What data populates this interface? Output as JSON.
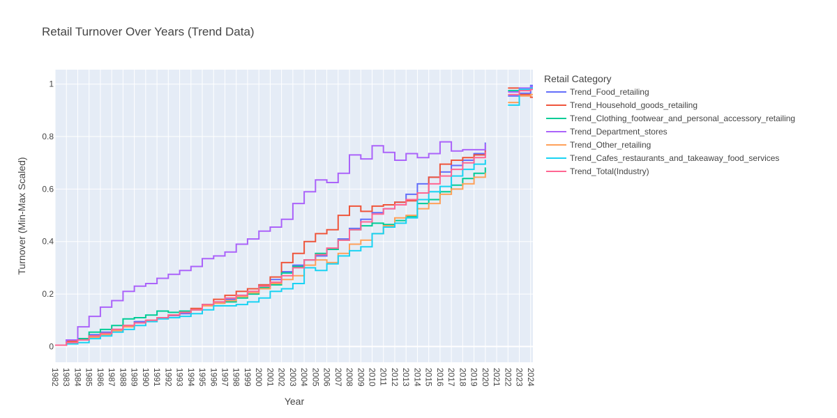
{
  "chart_data": {
    "type": "line",
    "title": "Retail Turnover Over Years (Trend Data)",
    "xlabel": "Year",
    "ylabel": "Turnover (Min-Max Scaled)",
    "xlim": [
      1982.0,
      2024.2
    ],
    "ylim": [
      -0.06,
      1.055
    ],
    "yticks": [
      0,
      0.2,
      0.4,
      0.6,
      0.8,
      1
    ],
    "ytick_labels": [
      "0",
      "0.2",
      "0.4",
      "0.6",
      "0.8",
      "1"
    ],
    "xticks": [
      1982,
      1983,
      1984,
      1985,
      1986,
      1987,
      1988,
      1989,
      1990,
      1991,
      1992,
      1993,
      1994,
      1995,
      1996,
      1997,
      1998,
      1999,
      2000,
      2001,
      2002,
      2003,
      2004,
      2005,
      2006,
      2007,
      2008,
      2009,
      2010,
      2011,
      2012,
      2013,
      2014,
      2015,
      2016,
      2017,
      2018,
      2019,
      2020,
      2021,
      2022,
      2023,
      2024
    ],
    "xtick_labels": [
      "1982",
      "1983",
      "1984",
      "1985",
      "1986",
      "1987",
      "1988",
      "1989",
      "1990",
      "1991",
      "1992",
      "1993",
      "1994",
      "1995",
      "1996",
      "1997",
      "1998",
      "1999",
      "2000",
      "2001",
      "2002",
      "2003",
      "2004",
      "2005",
      "2006",
      "2007",
      "2008",
      "2009",
      "2010",
      "2011",
      "2012",
      "2013",
      "2014",
      "2015",
      "2016",
      "2017",
      "2018",
      "2019",
      "2020",
      "2021",
      "2022",
      "2023",
      "2024"
    ],
    "grid": true,
    "plot_background": "#E5ECF6",
    "legend": {
      "title": "Retail Category",
      "placement": "right"
    },
    "years_main": [
      1982,
      1983,
      1984,
      1985,
      1986,
      1987,
      1988,
      1989,
      1990,
      1991,
      1992,
      1993,
      1994,
      1995,
      1996,
      1997,
      1998,
      1999,
      2000,
      2001,
      2002,
      2003,
      2004,
      2005,
      2006,
      2007,
      2008,
      2009,
      2010,
      2011,
      2012,
      2013,
      2014,
      2015,
      2016,
      2017,
      2018,
      2019,
      2020
    ],
    "years_recent": [
      2022,
      2023,
      2024
    ],
    "series": [
      {
        "name": "Trend_Food_retailing",
        "color": "#636EFA",
        "main": [
          0.005,
          0.025,
          0.03,
          0.045,
          0.055,
          0.065,
          0.08,
          0.095,
          0.1,
          0.11,
          0.118,
          0.125,
          0.14,
          0.16,
          0.17,
          0.18,
          0.195,
          0.22,
          0.235,
          0.255,
          0.285,
          0.31,
          0.33,
          0.345,
          0.37,
          0.41,
          0.45,
          0.485,
          0.51,
          0.525,
          0.55,
          0.58,
          0.62,
          0.645,
          0.665,
          0.69,
          0.71,
          0.735,
          0.775
        ],
        "recent": [
          0.955,
          0.965,
          0.995
        ]
      },
      {
        "name": "Trend_Household_goods_retailing",
        "color": "#EF553B",
        "main": [
          0.005,
          0.02,
          0.03,
          0.04,
          0.05,
          0.065,
          0.08,
          0.09,
          0.1,
          0.11,
          0.12,
          0.13,
          0.145,
          0.16,
          0.18,
          0.195,
          0.21,
          0.22,
          0.235,
          0.265,
          0.32,
          0.355,
          0.4,
          0.43,
          0.445,
          0.5,
          0.535,
          0.515,
          0.535,
          0.54,
          0.55,
          0.555,
          0.585,
          0.645,
          0.695,
          0.71,
          0.72,
          0.73,
          0.745
        ],
        "recent": [
          0.985,
          0.96,
          0.95
        ]
      },
      {
        "name": "Trend_Clothing_footwear_and_personal_accessory_retailing",
        "color": "#00CC96",
        "main": [
          0.005,
          0.015,
          0.03,
          0.055,
          0.065,
          0.08,
          0.105,
          0.11,
          0.12,
          0.135,
          0.13,
          0.135,
          0.14,
          0.16,
          0.165,
          0.17,
          0.185,
          0.2,
          0.225,
          0.235,
          0.28,
          0.305,
          0.33,
          0.355,
          0.37,
          0.405,
          0.445,
          0.46,
          0.47,
          0.465,
          0.48,
          0.495,
          0.545,
          0.56,
          0.59,
          0.615,
          0.64,
          0.66,
          0.68
        ],
        "recent": [
          0.975,
          0.98,
          0.985
        ]
      },
      {
        "name": "Trend_Department_stores",
        "color": "#AB63FA",
        "main": [
          0.005,
          0.025,
          0.075,
          0.115,
          0.15,
          0.175,
          0.21,
          0.23,
          0.24,
          0.26,
          0.275,
          0.29,
          0.305,
          0.335,
          0.345,
          0.36,
          0.39,
          0.41,
          0.44,
          0.455,
          0.485,
          0.545,
          0.59,
          0.635,
          0.625,
          0.66,
          0.73,
          0.715,
          0.765,
          0.74,
          0.71,
          0.735,
          0.72,
          0.735,
          0.78,
          0.745,
          0.75,
          0.75,
          0.77
        ],
        "recent": [
          0.97,
          0.985,
          0.99
        ]
      },
      {
        "name": "Trend_Other_retailing",
        "color": "#FFA15A",
        "main": [
          0.005,
          0.015,
          0.025,
          0.035,
          0.045,
          0.06,
          0.075,
          0.09,
          0.1,
          0.11,
          0.12,
          0.13,
          0.14,
          0.155,
          0.165,
          0.175,
          0.19,
          0.205,
          0.22,
          0.24,
          0.255,
          0.27,
          0.31,
          0.33,
          0.32,
          0.355,
          0.39,
          0.405,
          0.43,
          0.46,
          0.49,
          0.5,
          0.525,
          0.545,
          0.58,
          0.6,
          0.62,
          0.645,
          0.66
        ],
        "recent": [
          0.93,
          0.955,
          0.96
        ]
      },
      {
        "name": "Trend_Cafes_restaurants_and_takeaway_food_services",
        "color": "#19D3F3",
        "main": [
          0.005,
          0.01,
          0.015,
          0.03,
          0.04,
          0.055,
          0.065,
          0.08,
          0.095,
          0.105,
          0.11,
          0.115,
          0.125,
          0.14,
          0.155,
          0.155,
          0.16,
          0.17,
          0.185,
          0.21,
          0.22,
          0.24,
          0.3,
          0.29,
          0.315,
          0.345,
          0.365,
          0.38,
          0.43,
          0.455,
          0.47,
          0.49,
          0.56,
          0.59,
          0.61,
          0.65,
          0.675,
          0.695,
          0.71
        ],
        "recent": [
          0.92,
          0.98,
          0.985
        ]
      },
      {
        "name": "Trend_Total(Industry)",
        "color": "#FF6692",
        "main": [
          0.005,
          0.015,
          0.025,
          0.04,
          0.05,
          0.065,
          0.08,
          0.09,
          0.1,
          0.11,
          0.12,
          0.13,
          0.14,
          0.16,
          0.17,
          0.185,
          0.195,
          0.21,
          0.23,
          0.245,
          0.27,
          0.3,
          0.33,
          0.35,
          0.375,
          0.405,
          0.445,
          0.475,
          0.505,
          0.525,
          0.54,
          0.56,
          0.585,
          0.62,
          0.65,
          0.675,
          0.7,
          0.72,
          0.74
        ],
        "recent": [
          0.96,
          0.975,
          0.98
        ]
      }
    ]
  }
}
